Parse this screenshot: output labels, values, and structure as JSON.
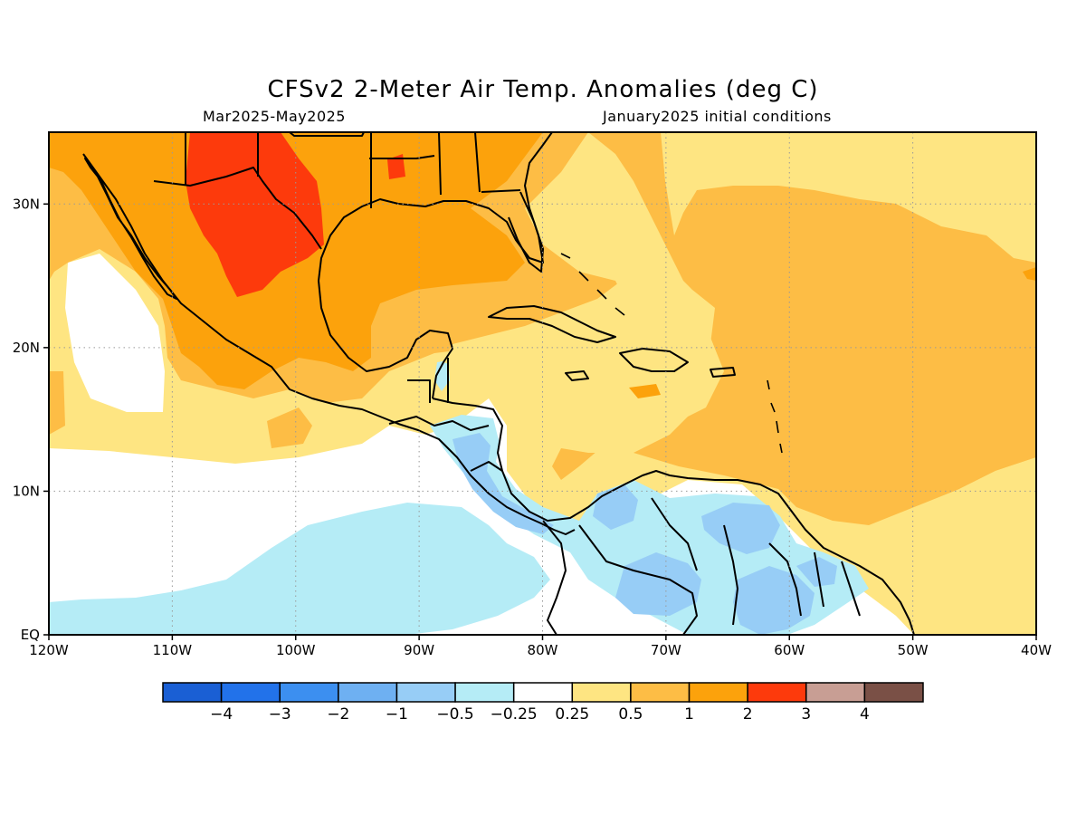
{
  "title": "CFSv2 2-Meter Air Temp. Anomalies (deg C)",
  "period": "Mar2025-May2025",
  "initial_conditions": "January2025 initial conditions",
  "map": {
    "lon_range": [
      -120,
      -40
    ],
    "lat_range": [
      0,
      35
    ],
    "lon_ticks": [
      {
        "value": -120,
        "label": "120W"
      },
      {
        "value": -110,
        "label": "110W"
      },
      {
        "value": -100,
        "label": "100W"
      },
      {
        "value": -90,
        "label": "90W"
      },
      {
        "value": -80,
        "label": "80W"
      },
      {
        "value": -70,
        "label": "70W"
      },
      {
        "value": -60,
        "label": "60W"
      },
      {
        "value": -50,
        "label": "50W"
      },
      {
        "value": -40,
        "label": "40W"
      }
    ],
    "lat_ticks": [
      {
        "value": 0,
        "label": "EQ"
      },
      {
        "value": 10,
        "label": "10N"
      },
      {
        "value": 20,
        "label": "20N"
      },
      {
        "value": 30,
        "label": "30N"
      }
    ],
    "grid": "dotted"
  },
  "colorbar": {
    "colors": [
      "#1a5fd4",
      "#2272ea",
      "#3c8ff0",
      "#6eb0f2",
      "#97cdf6",
      "#b5ecf6",
      "#ffffff",
      "#fee582",
      "#fdbd45",
      "#fca20c",
      "#fd3a0c",
      "#c89e94",
      "#7a5046"
    ],
    "labels": [
      "-4",
      "-3",
      "-2",
      "-1",
      "-0.5",
      "-0.25",
      "0.25",
      "0.5",
      "1",
      "2",
      "3",
      "4"
    ]
  }
}
